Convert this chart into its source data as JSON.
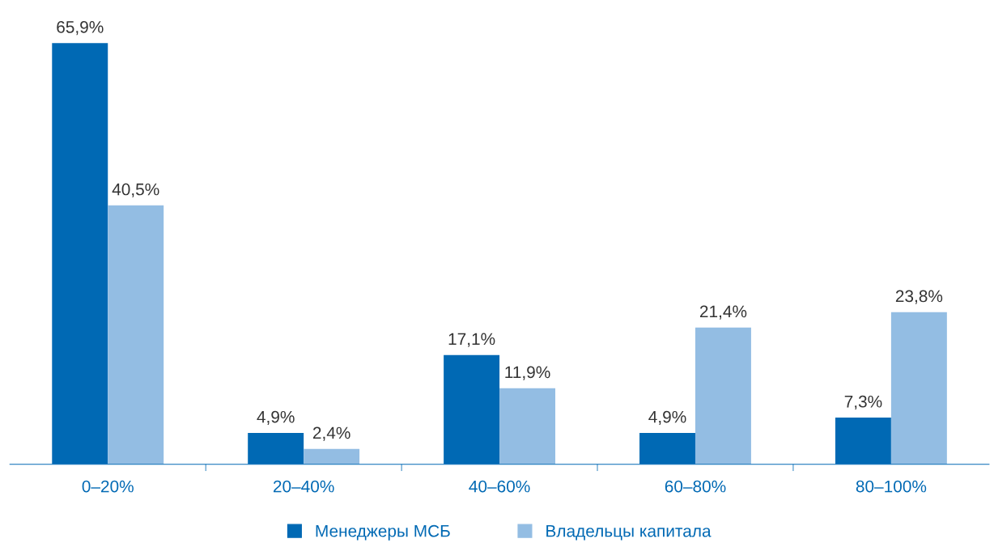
{
  "chart_data": {
    "type": "bar",
    "categories": [
      "0–20%",
      "20–40%",
      "40–60%",
      "60–80%",
      "80–100%"
    ],
    "series": [
      {
        "name": "Менеджеры МСБ",
        "color": "#0069b4",
        "values": [
          65.9,
          4.9,
          17.1,
          4.9,
          7.3
        ],
        "value_labels": [
          "65,9%",
          "4,9%",
          "17,1%",
          "4,9%",
          "7,3%"
        ]
      },
      {
        "name": "Владельцы капитала",
        "color": "#93bde3",
        "values": [
          40.5,
          2.4,
          11.9,
          21.4,
          23.8
        ],
        "value_labels": [
          "40,5%",
          "2,4%",
          "11,9%",
          "21,4%",
          "23,8%"
        ]
      }
    ],
    "legend": "bottom",
    "grid": false
  }
}
